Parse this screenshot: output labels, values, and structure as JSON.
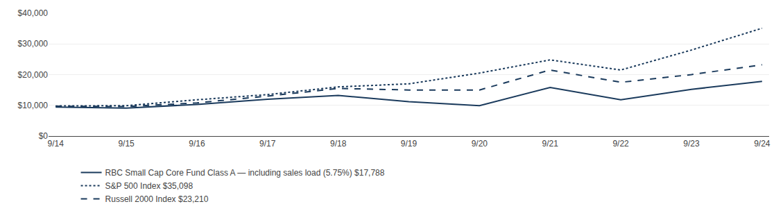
{
  "chart_data": {
    "type": "line",
    "categories": [
      "9/14",
      "9/15",
      "9/16",
      "9/17",
      "9/18",
      "9/19",
      "9/20",
      "9/21",
      "9/22",
      "9/23",
      "9/24"
    ],
    "series": [
      {
        "name": "RBC Small Cap Core Fund Class A — including sales load (5.75%) $17,788",
        "color": "#1a3a5c",
        "line_style": "solid",
        "values": [
          9430,
          9100,
          10300,
          12000,
          13200,
          11200,
          9900,
          15800,
          11800,
          15200,
          17788
        ]
      },
      {
        "name": "S&P 500 Index $35,098",
        "color": "#1a3a5c",
        "line_style": "dotted",
        "values": [
          9800,
          9900,
          11800,
          13500,
          16000,
          17000,
          20500,
          24800,
          21500,
          28000,
          35098
        ]
      },
      {
        "name": "Russell 2000 Index $23,210",
        "color": "#1a3a5c",
        "line_style": "dashed",
        "values": [
          9700,
          9600,
          10800,
          13000,
          15500,
          15000,
          15000,
          21500,
          17500,
          20000,
          23210
        ]
      }
    ],
    "ylim": [
      0,
      40000
    ],
    "yticks": [
      {
        "value": 0,
        "label": "$0"
      },
      {
        "value": 10000,
        "label": "$10,000"
      },
      {
        "value": 20000,
        "label": "$20,000"
      },
      {
        "value": 30000,
        "label": "$30,000"
      },
      {
        "value": 40000,
        "label": "$40,000"
      }
    ],
    "grid": true,
    "legend": "bottom"
  }
}
